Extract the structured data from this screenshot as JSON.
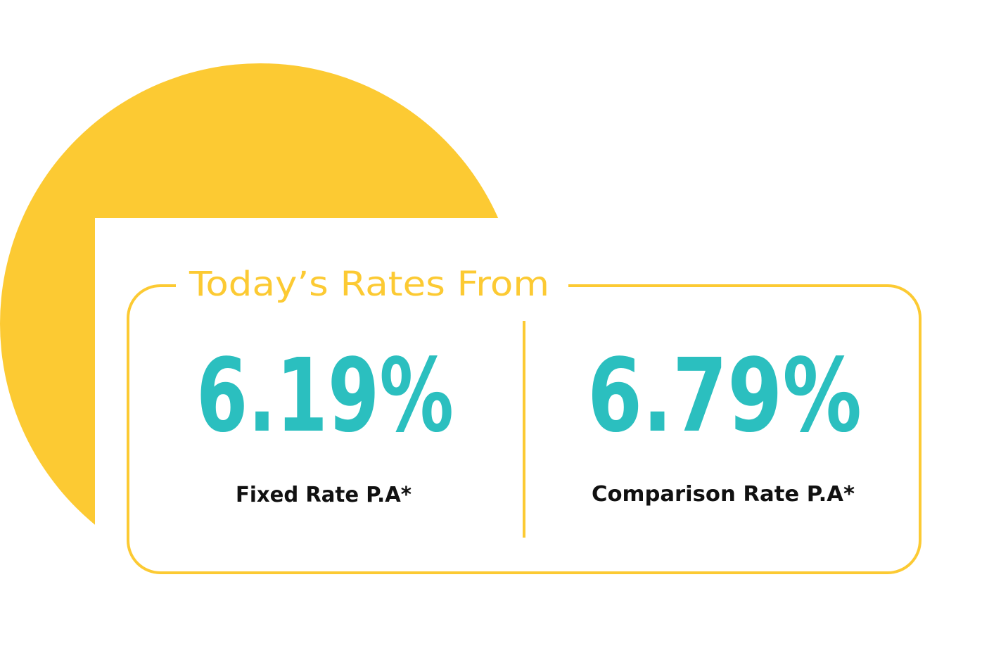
{
  "title": "Today’s Rates From",
  "rates": [
    {
      "value": "6.19%",
      "label": "Fixed Rate P.A*"
    },
    {
      "value": "6.79%",
      "label": "Comparison Rate P.A*"
    }
  ]
}
